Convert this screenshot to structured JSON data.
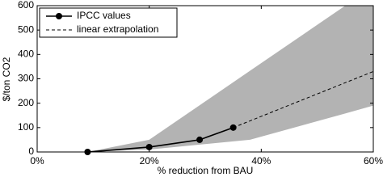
{
  "chart_data": {
    "type": "line",
    "xlabel": "% reduction from BAU",
    "ylabel": "$/ton CO2",
    "xlim": [
      0,
      60
    ],
    "ylim": [
      0,
      600
    ],
    "xticks": [
      {
        "value": 0,
        "label": "0%"
      },
      {
        "value": 20,
        "label": "20%"
      },
      {
        "value": 40,
        "label": "40%"
      },
      {
        "value": 60,
        "label": "60%"
      }
    ],
    "yticks": [
      0,
      100,
      200,
      300,
      400,
      500,
      600
    ],
    "legend": "upper-left",
    "band": {
      "x": [
        9,
        20,
        38,
        55,
        60
      ],
      "lower": [
        0,
        10,
        50,
        158,
        190
      ],
      "upper": [
        0,
        50,
        333,
        600,
        600
      ],
      "color": "#b3b3b3"
    },
    "series": [
      {
        "name": "IPCC values",
        "color": "#000000",
        "style": "solid",
        "marker": "circle",
        "x": [
          9,
          20,
          29,
          35
        ],
        "values": [
          0,
          20,
          50,
          100
        ]
      },
      {
        "name": "linear extrapolation",
        "color": "#000000",
        "style": "dashed",
        "x": [
          35,
          60
        ],
        "values": [
          100,
          330
        ]
      }
    ]
  }
}
